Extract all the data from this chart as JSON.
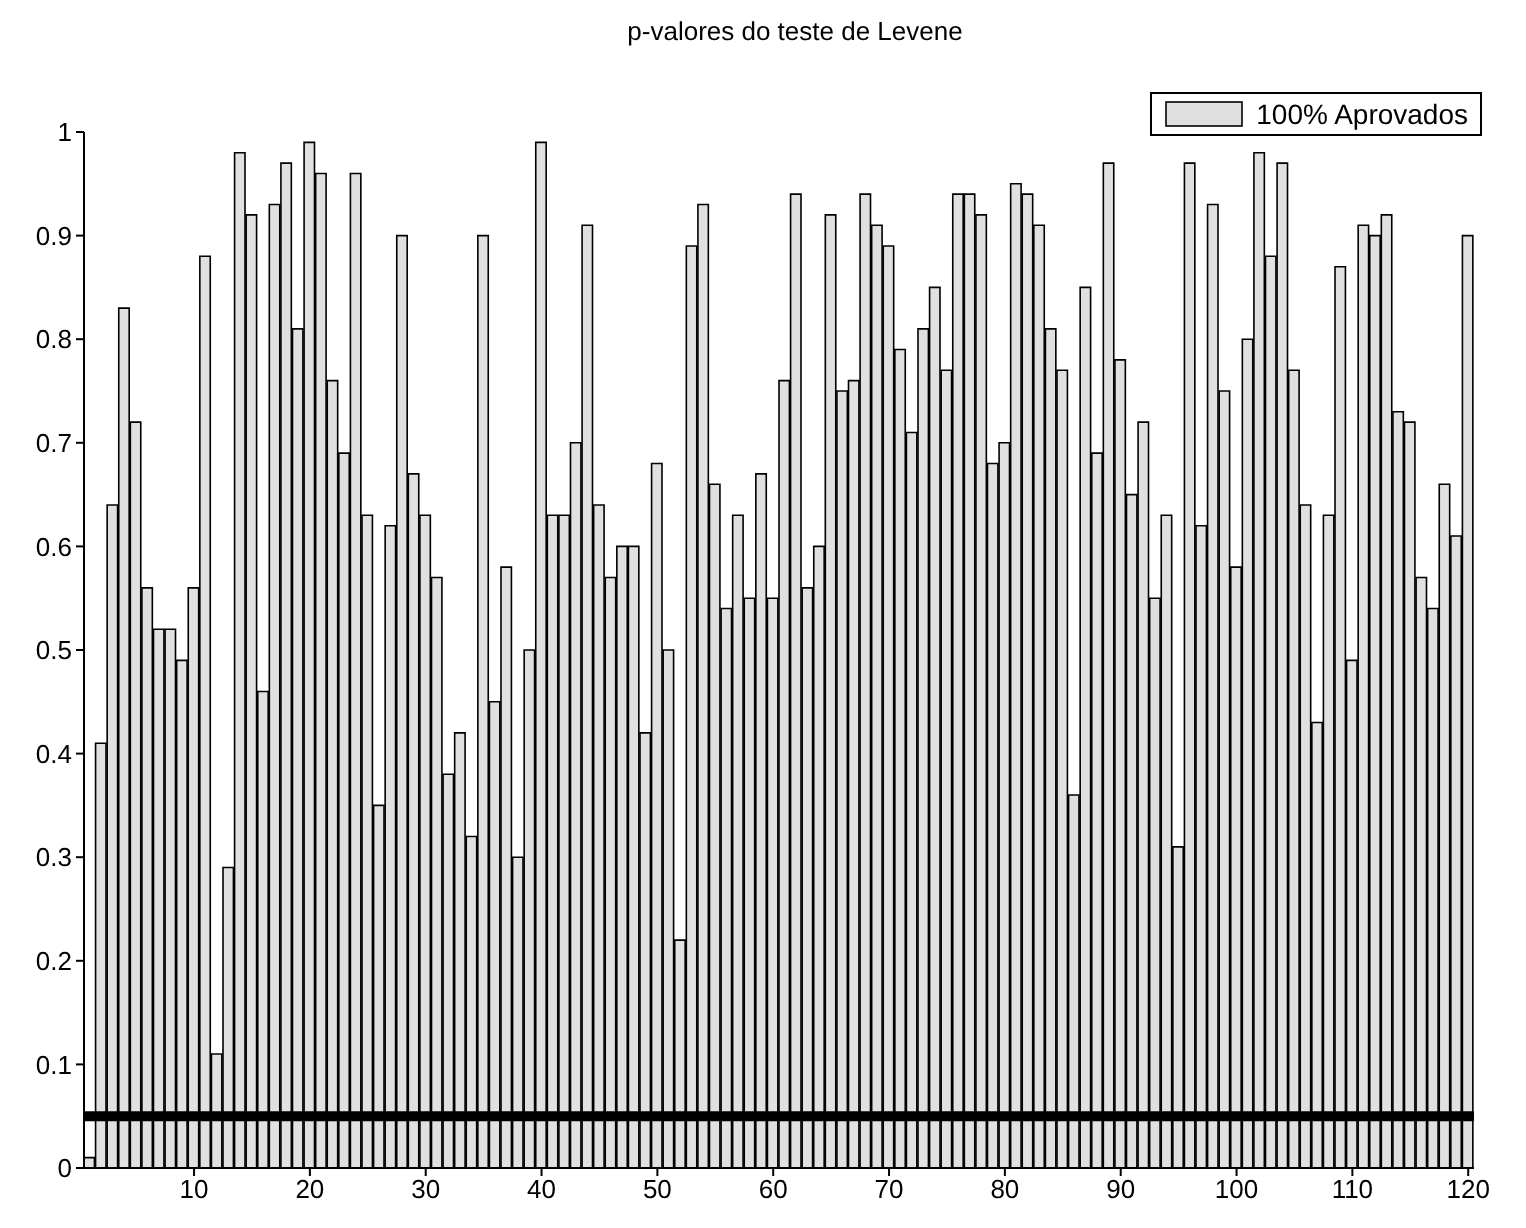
{
  "chart_data": {
    "type": "bar",
    "title": "p-valores do teste de Levene",
    "x": [
      1,
      2,
      3,
      4,
      5,
      6,
      7,
      8,
      9,
      10,
      11,
      12,
      13,
      14,
      15,
      16,
      17,
      18,
      19,
      20,
      21,
      22,
      23,
      24,
      25,
      26,
      27,
      28,
      29,
      30,
      31,
      32,
      33,
      34,
      35,
      36,
      37,
      38,
      39,
      40,
      41,
      42,
      43,
      44,
      45,
      46,
      47,
      48,
      49,
      50,
      51,
      52,
      53,
      54,
      55,
      56,
      57,
      58,
      59,
      60,
      61,
      62,
      63,
      64,
      65,
      66,
      67,
      68,
      69,
      70,
      71,
      72,
      73,
      74,
      75,
      76,
      77,
      78,
      79,
      80,
      81,
      82,
      83,
      84,
      85,
      86,
      87,
      88,
      89,
      90,
      91,
      92,
      93,
      94,
      95,
      96,
      97,
      98,
      99,
      100,
      101,
      102,
      103,
      104,
      105,
      106,
      107,
      108,
      109,
      110,
      111,
      112,
      113,
      114,
      115,
      116,
      117,
      118,
      119,
      120
    ],
    "series": [
      {
        "name": "100% Aprovados",
        "color": "#e0e0e0",
        "values": [
          0.01,
          0.41,
          0.64,
          0.83,
          0.72,
          0.56,
          0.52,
          0.52,
          0.49,
          0.56,
          0.88,
          0.11,
          0.29,
          0.98,
          0.92,
          0.46,
          0.93,
          0.97,
          0.81,
          0.99,
          0.96,
          0.76,
          0.69,
          0.96,
          0.63,
          0.35,
          0.62,
          0.9,
          0.67,
          0.63,
          0.57,
          0.38,
          0.42,
          0.32,
          0.9,
          0.45,
          0.58,
          0.3,
          0.5,
          0.99,
          0.63,
          0.63,
          0.7,
          0.91,
          0.64,
          0.57,
          0.6,
          0.6,
          0.42,
          0.68,
          0.5,
          0.22,
          0.89,
          0.93,
          0.66,
          0.54,
          0.63,
          0.55,
          0.67,
          0.55,
          0.76,
          0.94,
          0.56,
          0.6,
          0.92,
          0.75,
          0.76,
          0.94,
          0.91,
          0.89,
          0.79,
          0.71,
          0.81,
          0.85,
          0.77,
          0.94,
          0.94,
          0.92,
          0.68,
          0.7,
          0.95,
          0.94,
          0.91,
          0.81,
          0.77,
          0.36,
          0.85,
          0.69,
          0.97,
          0.78,
          0.65,
          0.72,
          0.55,
          0.63,
          0.31,
          0.97,
          0.62,
          0.93,
          0.75,
          0.58,
          0.8,
          0.98,
          0.88,
          0.97,
          0.77,
          0.64,
          0.43,
          0.63,
          0.87,
          0.49,
          0.91,
          0.9,
          0.92,
          0.73,
          0.72,
          0.57,
          0.54,
          0.66,
          0.61,
          0.9
        ]
      }
    ],
    "xlim": [
      0.5,
      120.5
    ],
    "xticks": [
      10,
      20,
      30,
      40,
      50,
      60,
      70,
      80,
      90,
      100,
      110,
      120
    ],
    "ylim": [
      0,
      1
    ],
    "yticks": [
      0,
      0.1,
      0.2,
      0.3,
      0.4,
      0.5,
      0.6,
      0.7,
      0.8,
      0.9,
      1
    ],
    "ref_lines": [
      {
        "axis": "y",
        "value": 0.05,
        "color": "#000000"
      }
    ],
    "grid": false,
    "legend": "top right"
  }
}
